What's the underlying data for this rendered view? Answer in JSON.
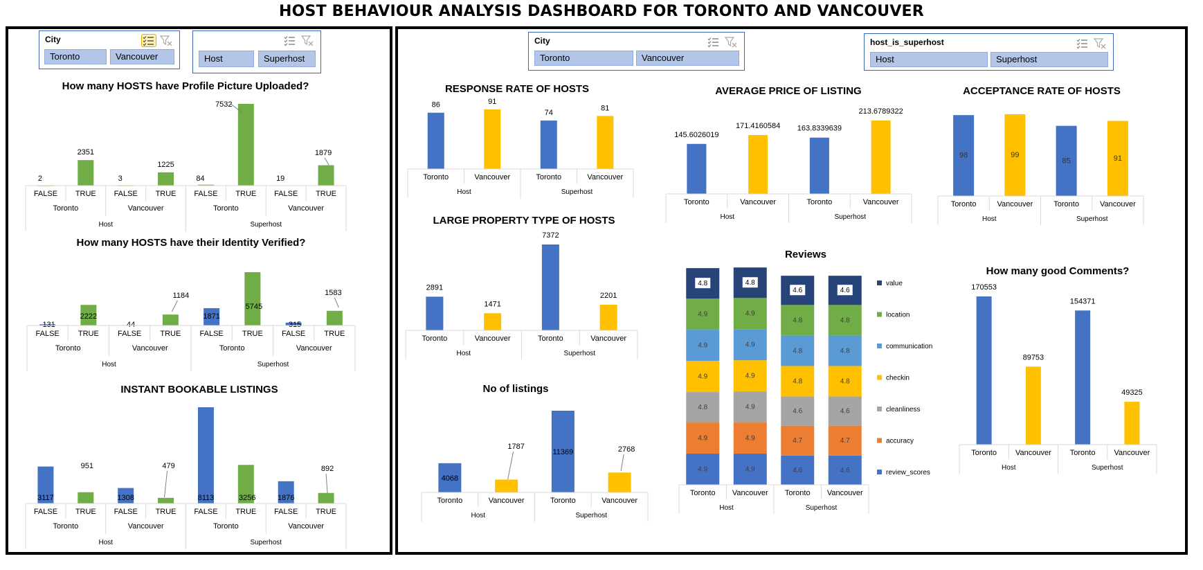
{
  "title": "HOST BEHAVIOUR ANALYSIS DASHBOARD FOR TORONTO AND VANCOUVER",
  "colors": {
    "blue": "#4472c4",
    "yellow": "#ffc000",
    "green": "#70ad47",
    "gray": "#a5a5a5",
    "orange": "#ed7d31",
    "darkblue": "#264478",
    "lightblue": "#5b9bd5"
  },
  "slicers": {
    "left_city": {
      "title": "City",
      "items": [
        "Toronto",
        "Vancouver"
      ]
    },
    "left_host": {
      "title": "",
      "items": [
        "Host",
        "Superhost"
      ]
    },
    "right_city": {
      "title": "City",
      "items": [
        "Toronto",
        "Vancouver"
      ]
    },
    "right_host": {
      "title": "host_is_superhost",
      "items": [
        "Host",
        "Superhost"
      ]
    }
  },
  "chart_data": [
    {
      "id": "profile-picture",
      "type": "bar",
      "title": "How many HOSTS have Profile Picture Uploaded?",
      "groups": [
        "Host",
        "Superhost"
      ],
      "cities": [
        "Toronto",
        "Vancouver"
      ],
      "categories": [
        "FALSE",
        "TRUE",
        "FALSE",
        "TRUE",
        "FALSE",
        "TRUE",
        "FALSE",
        "TRUE"
      ],
      "values": [
        2,
        2351,
        3,
        1225,
        84,
        7532,
        19,
        1879
      ],
      "labels": [
        "2",
        "2351",
        "3",
        "1225",
        "84",
        "7532",
        "19",
        "1879"
      ]
    },
    {
      "id": "identity-verified",
      "type": "bar",
      "title": "How many HOSTS have their Identity  Verified?",
      "groups": [
        "Host",
        "Superhost"
      ],
      "cities": [
        "Toronto",
        "Vancouver"
      ],
      "categories": [
        "FALSE",
        "TRUE",
        "FALSE",
        "TRUE",
        "FALSE",
        "TRUE",
        "FALSE",
        "TRUE"
      ],
      "values": [
        131,
        2222,
        44,
        1184,
        1871,
        5745,
        315,
        1583
      ],
      "labels": [
        "131",
        "2222",
        "44",
        "1184",
        "1871",
        "5745",
        "315",
        "1583"
      ]
    },
    {
      "id": "instant-bookable",
      "type": "bar",
      "title": "INSTANT BOOKABLE LISTINGS",
      "groups": [
        "Host",
        "Superhost"
      ],
      "cities": [
        "Toronto",
        "Vancouver"
      ],
      "categories": [
        "FALSE",
        "TRUE",
        "FALSE",
        "TRUE",
        "FALSE",
        "TRUE",
        "FALSE",
        "TRUE"
      ],
      "values": [
        3117,
        951,
        1308,
        479,
        8113,
        3256,
        1876,
        892
      ],
      "labels": [
        "3117",
        "951",
        "1308",
        "479",
        "8113",
        "3256",
        "1876",
        "892"
      ]
    },
    {
      "id": "response-rate",
      "type": "bar",
      "title": "RESPONSE RATE OF HOSTS",
      "groups": [
        "Host",
        "Superhost"
      ],
      "categories": [
        "Toronto",
        "Vancouver",
        "Toronto",
        "Vancouver"
      ],
      "values": [
        86,
        91,
        74,
        81
      ],
      "labels": [
        "86",
        "91",
        "74",
        "81"
      ]
    },
    {
      "id": "large-property",
      "type": "bar",
      "title": "LARGE PROPERTY TYPE OF HOSTS",
      "groups": [
        "Host",
        "Superhost"
      ],
      "categories": [
        "Toronto",
        "Vancouver",
        "Toronto",
        "Vancouver"
      ],
      "values": [
        2891,
        1471,
        7372,
        2201
      ],
      "labels": [
        "2891",
        "1471",
        "7372",
        "2201"
      ]
    },
    {
      "id": "no-of-listings",
      "type": "bar",
      "title": "No of listings",
      "groups": [
        "Host",
        "Superhost"
      ],
      "categories": [
        "Toronto",
        "Vancouver",
        "Toronto",
        "Vancouver"
      ],
      "values": [
        4068,
        1787,
        11369,
        2768
      ],
      "labels": [
        "4068",
        "1787",
        "11369",
        "2768"
      ]
    },
    {
      "id": "average-price",
      "type": "bar",
      "title": "AVERAGE PRICE OF LISTING",
      "groups": [
        "Host",
        "Superhost"
      ],
      "categories": [
        "Toronto",
        "Vancouver",
        "Toronto",
        "Vancouver"
      ],
      "values": [
        145.6026019,
        171.4160584,
        163.8339639,
        213.6789322
      ],
      "labels": [
        "145.6026019",
        "171.4160584",
        "163.8339639",
        "213.6789322"
      ]
    },
    {
      "id": "acceptance-rate",
      "type": "bar",
      "title": "ACCEPTANCE RATE OF HOSTS",
      "groups": [
        "Host",
        "Superhost"
      ],
      "categories": [
        "Toronto",
        "Vancouver",
        "Toronto",
        "Vancouver"
      ],
      "values": [
        98,
        99,
        85,
        91
      ],
      "labels": [
        "98",
        "99",
        "85",
        "91"
      ]
    },
    {
      "id": "reviews",
      "type": "bar",
      "stacked": true,
      "title": "Reviews",
      "groups": [
        "Host",
        "Superhost"
      ],
      "categories": [
        "Toronto",
        "Vancouver",
        "Toronto",
        "Vancouver"
      ],
      "legend": "right",
      "series": [
        {
          "name": "review_scores",
          "values": [
            4.9,
            4.9,
            4.6,
            4.6
          ]
        },
        {
          "name": "accuracy",
          "values": [
            4.9,
            4.9,
            4.7,
            4.7
          ]
        },
        {
          "name": "cleanliness",
          "values": [
            4.8,
            4.9,
            4.6,
            4.6
          ]
        },
        {
          "name": "checkin",
          "values": [
            4.9,
            4.9,
            4.8,
            4.8
          ]
        },
        {
          "name": "communication",
          "values": [
            4.9,
            4.9,
            4.8,
            4.8
          ]
        },
        {
          "name": "location",
          "values": [
            4.9,
            4.9,
            4.8,
            4.8
          ]
        },
        {
          "name": "value",
          "values": [
            4.8,
            4.8,
            4.6,
            4.6
          ]
        }
      ]
    },
    {
      "id": "good-comments",
      "type": "bar",
      "title": "How many good Comments?",
      "groups": [
        "Host",
        "Superhost"
      ],
      "categories": [
        "Toronto",
        "Vancouver",
        "Toronto",
        "Vancouver"
      ],
      "values": [
        170553,
        89753,
        154371,
        49325
      ],
      "labels": [
        "170553",
        "89753",
        "154371",
        "49325"
      ]
    }
  ]
}
